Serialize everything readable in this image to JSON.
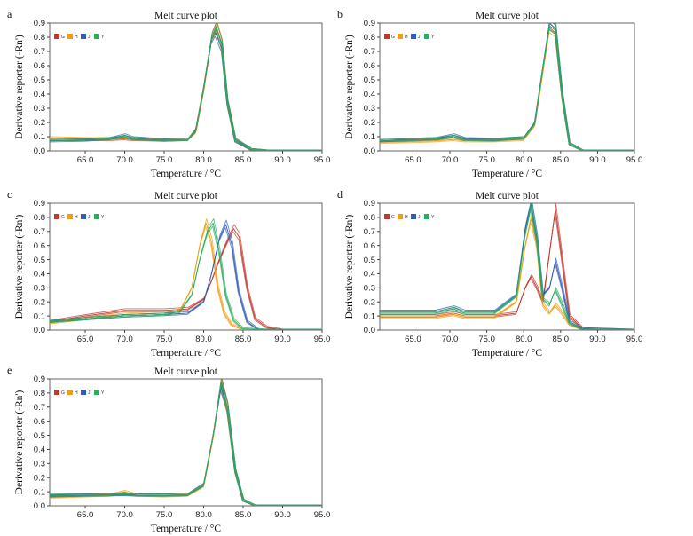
{
  "chart_data": [
    {
      "panel": "a",
      "type": "line",
      "title": "Melt curve plot",
      "xlabel": "Temperature / °C",
      "ylabel": "Derivative reporter (-Rn')",
      "xlim": [
        60.5,
        95.0
      ],
      "ylim": [
        0.0,
        0.9
      ],
      "xticks": [
        "65.0",
        "70.0",
        "75.0",
        "80.0",
        "85.0",
        "90.0",
        "95.0"
      ],
      "yticks": [
        "0.0",
        "0.1",
        "0.2",
        "0.3",
        "0.4",
        "0.5",
        "0.6",
        "0.7",
        "0.8",
        "0.9"
      ],
      "legend": [
        "G",
        "H",
        "J",
        "Y"
      ],
      "series": [
        {
          "name": "G",
          "color": "#c0392b",
          "x": [
            60.5,
            65,
            68,
            70,
            71,
            75,
            78,
            79,
            80,
            81,
            81.6,
            82.3,
            83,
            84,
            86,
            88,
            95
          ],
          "y": [
            0.08,
            0.08,
            0.08,
            0.085,
            0.08,
            0.075,
            0.08,
            0.15,
            0.45,
            0.8,
            0.88,
            0.75,
            0.35,
            0.08,
            0.01,
            0.0,
            0.0
          ]
        },
        {
          "name": "H",
          "color": "#f39c12",
          "x": [
            60.5,
            65,
            68,
            70,
            71,
            75,
            78,
            79,
            80,
            81,
            81.7,
            82.3,
            83,
            84,
            86,
            88,
            95
          ],
          "y": [
            0.09,
            0.085,
            0.085,
            0.095,
            0.085,
            0.08,
            0.08,
            0.13,
            0.42,
            0.78,
            0.86,
            0.74,
            0.33,
            0.07,
            0.01,
            0.0,
            0.0
          ]
        },
        {
          "name": "J",
          "color": "#2e5cb8",
          "x": [
            60.5,
            65,
            68,
            70,
            71,
            75,
            78,
            79,
            80,
            81,
            81.5,
            82.3,
            83,
            84,
            86,
            88,
            95
          ],
          "y": [
            0.07,
            0.075,
            0.085,
            0.11,
            0.09,
            0.075,
            0.08,
            0.14,
            0.44,
            0.78,
            0.83,
            0.72,
            0.34,
            0.07,
            0.01,
            0.0,
            0.0
          ]
        },
        {
          "name": "Y",
          "color": "#27ae60",
          "x": [
            60.5,
            65,
            68,
            70,
            71,
            75,
            78,
            79,
            80,
            81,
            81.6,
            82.3,
            83,
            84,
            86,
            88,
            95
          ],
          "y": [
            0.08,
            0.08,
            0.085,
            0.1,
            0.085,
            0.078,
            0.08,
            0.14,
            0.44,
            0.8,
            0.87,
            0.74,
            0.34,
            0.08,
            0.01,
            0.0,
            0.0
          ]
        }
      ]
    },
    {
      "panel": "b",
      "type": "line",
      "title": "Melt curve plot",
      "xlabel": "Temperature / °C",
      "ylabel": "Derivative reporter (-Rn')",
      "xlim": [
        60.5,
        95.0
      ],
      "ylim": [
        0.0,
        0.9
      ],
      "xticks": [
        "65.0",
        "70.0",
        "75.0",
        "80.0",
        "85.0",
        "90.0",
        "95.0"
      ],
      "yticks": [
        "0.0",
        "0.1",
        "0.2",
        "0.3",
        "0.4",
        "0.5",
        "0.6",
        "0.7",
        "0.8",
        "0.9"
      ],
      "legend": [
        "G",
        "H",
        "J",
        "Y"
      ],
      "series": [
        {
          "name": "G",
          "color": "#c0392b",
          "x": [
            60.5,
            65,
            68,
            70.5,
            72,
            76,
            80,
            81.5,
            82.5,
            83.5,
            84.3,
            85.2,
            86.2,
            88,
            95
          ],
          "y": [
            0.07,
            0.075,
            0.08,
            0.1,
            0.08,
            0.075,
            0.09,
            0.2,
            0.55,
            0.88,
            0.85,
            0.4,
            0.05,
            0.0,
            0.0
          ]
        },
        {
          "name": "H",
          "color": "#f39c12",
          "x": [
            60.5,
            65,
            68,
            70.5,
            72,
            76,
            80,
            81.5,
            82.5,
            83.5,
            84.3,
            85.2,
            86.2,
            88,
            95
          ],
          "y": [
            0.06,
            0.065,
            0.07,
            0.08,
            0.07,
            0.07,
            0.08,
            0.18,
            0.52,
            0.86,
            0.83,
            0.38,
            0.05,
            0.0,
            0.0
          ]
        },
        {
          "name": "J",
          "color": "#2e5cb8",
          "x": [
            60.5,
            65,
            68,
            70.5,
            72,
            76,
            80,
            81.5,
            82.5,
            83.5,
            84.3,
            85.2,
            86.2,
            88,
            95
          ],
          "y": [
            0.07,
            0.08,
            0.085,
            0.11,
            0.085,
            0.08,
            0.09,
            0.2,
            0.56,
            0.9,
            0.86,
            0.4,
            0.05,
            0.0,
            0.0
          ]
        },
        {
          "name": "Y",
          "color": "#27ae60",
          "x": [
            60.5,
            65,
            68,
            70.5,
            72,
            76,
            80,
            81.5,
            82.5,
            83.5,
            84.3,
            85.2,
            86.2,
            88,
            95
          ],
          "y": [
            0.08,
            0.08,
            0.085,
            0.1,
            0.08,
            0.078,
            0.09,
            0.19,
            0.55,
            0.88,
            0.85,
            0.39,
            0.05,
            0.0,
            0.0
          ]
        }
      ]
    },
    {
      "panel": "c",
      "type": "line",
      "title": "Melt curve plot",
      "xlabel": "Temperature / °C",
      "ylabel": "Derivative reporter (-Rn')",
      "xlim": [
        60.5,
        95.0
      ],
      "ylim": [
        0.0,
        0.9
      ],
      "xticks": [
        "65.0",
        "70.0",
        "75.0",
        "80.0",
        "85.0",
        "90.0",
        "95.0"
      ],
      "yticks": [
        "0.0",
        "0.1",
        "0.2",
        "0.3",
        "0.4",
        "0.5",
        "0.6",
        "0.7",
        "0.8",
        "0.9"
      ],
      "legend": [
        "G",
        "H",
        "J",
        "Y"
      ],
      "series": [
        {
          "name": "G",
          "color": "#c0392b",
          "x": [
            60.5,
            65,
            70,
            75,
            78,
            80,
            81,
            82,
            83,
            83.8,
            84.5,
            85.5,
            86.5,
            88,
            90,
            95
          ],
          "y": [
            0.06,
            0.1,
            0.14,
            0.14,
            0.15,
            0.22,
            0.35,
            0.5,
            0.63,
            0.72,
            0.66,
            0.3,
            0.08,
            0.02,
            0.0,
            0.0
          ]
        },
        {
          "name": "H",
          "color": "#f39c12",
          "x": [
            60.5,
            65,
            70,
            75,
            77,
            78.5,
            79.5,
            80.3,
            81,
            81.8,
            82.6,
            83.5,
            85,
            88,
            95
          ],
          "y": [
            0.05,
            0.08,
            0.11,
            0.12,
            0.14,
            0.3,
            0.6,
            0.76,
            0.62,
            0.3,
            0.12,
            0.04,
            0.0,
            0.0,
            0.0
          ]
        },
        {
          "name": "J",
          "color": "#2e5cb8",
          "x": [
            60.5,
            65,
            70,
            75,
            78,
            80,
            81,
            82,
            82.8,
            83.6,
            84.4,
            85.5,
            87,
            95
          ],
          "y": [
            0.06,
            0.08,
            0.1,
            0.11,
            0.12,
            0.2,
            0.4,
            0.65,
            0.75,
            0.6,
            0.28,
            0.06,
            0.0,
            0.0
          ]
        },
        {
          "name": "Y",
          "color": "#27ae60",
          "x": [
            60.5,
            65,
            70,
            75,
            77,
            78.5,
            79.5,
            80.5,
            81.2,
            82,
            82.8,
            83.8,
            85,
            88,
            95
          ],
          "y": [
            0.06,
            0.08,
            0.1,
            0.11,
            0.13,
            0.25,
            0.5,
            0.7,
            0.76,
            0.55,
            0.25,
            0.07,
            0.01,
            0.0,
            0.0
          ]
        }
      ]
    },
    {
      "panel": "d",
      "type": "line",
      "title": "Melt curve plot",
      "xlabel": "Temperature / °C",
      "ylabel": "Derivative reporter (-Rn')",
      "xlim": [
        60.5,
        95.0
      ],
      "ylim": [
        0.0,
        0.9
      ],
      "xticks": [
        "65.0",
        "70.0",
        "75.0",
        "80.0",
        "85.0",
        "90.0",
        "95.0"
      ],
      "yticks": [
        "0.0",
        "0.1",
        "0.2",
        "0.3",
        "0.4",
        "0.5",
        "0.6",
        "0.7",
        "0.8",
        "0.9"
      ],
      "legend": [
        "G",
        "H",
        "J",
        "Y"
      ],
      "series": [
        {
          "name": "G",
          "color": "#c0392b",
          "x": [
            60.5,
            65,
            68,
            70.5,
            72,
            76,
            79,
            80.2,
            81,
            81.8,
            82.6,
            83.5,
            84.3,
            85.2,
            86.2,
            88,
            95
          ],
          "y": [
            0.1,
            0.1,
            0.1,
            0.12,
            0.1,
            0.1,
            0.12,
            0.3,
            0.38,
            0.3,
            0.2,
            0.55,
            0.86,
            0.5,
            0.1,
            0.01,
            0.0
          ]
        },
        {
          "name": "H",
          "color": "#f39c12",
          "x": [
            60.5,
            65,
            68,
            70.5,
            72,
            76,
            79,
            80.2,
            81,
            81.8,
            82.6,
            83.5,
            84.3,
            85.2,
            86.2,
            88,
            95
          ],
          "y": [
            0.09,
            0.09,
            0.09,
            0.11,
            0.09,
            0.09,
            0.2,
            0.6,
            0.79,
            0.6,
            0.18,
            0.12,
            0.18,
            0.12,
            0.04,
            0.0,
            0.0
          ]
        },
        {
          "name": "J",
          "color": "#2e5cb8",
          "x": [
            60.5,
            65,
            68,
            70.5,
            72,
            76,
            79,
            80.2,
            81,
            81.8,
            82.6,
            83.5,
            84.3,
            85.2,
            86.2,
            88,
            95
          ],
          "y": [
            0.13,
            0.13,
            0.13,
            0.16,
            0.13,
            0.13,
            0.25,
            0.72,
            0.9,
            0.65,
            0.25,
            0.3,
            0.49,
            0.3,
            0.06,
            0.01,
            0.0
          ]
        },
        {
          "name": "Y",
          "color": "#27ae60",
          "x": [
            60.5,
            65,
            68,
            70.5,
            72,
            76,
            79,
            80.2,
            81,
            81.8,
            82.6,
            83.5,
            84.3,
            85.2,
            86.2,
            88,
            95
          ],
          "y": [
            0.12,
            0.12,
            0.12,
            0.15,
            0.12,
            0.12,
            0.24,
            0.68,
            0.88,
            0.63,
            0.22,
            0.18,
            0.29,
            0.18,
            0.05,
            0.0,
            0.0
          ]
        }
      ]
    },
    {
      "panel": "e",
      "type": "line",
      "title": "Melt curve plot",
      "xlabel": "Temperature / °C",
      "ylabel": "Derivative reporter (-Rn')",
      "xlim": [
        60.5,
        95.0
      ],
      "ylim": [
        0.0,
        0.9
      ],
      "xticks": [
        "65.0",
        "70.0",
        "75.0",
        "80.0",
        "85.0",
        "90.0",
        "95.0"
      ],
      "yticks": [
        "0.0",
        "0.1",
        "0.2",
        "0.3",
        "0.4",
        "0.5",
        "0.6",
        "0.7",
        "0.8",
        "0.9"
      ],
      "legend": [
        "G",
        "H",
        "J",
        "Y"
      ],
      "series": [
        {
          "name": "G",
          "color": "#c0392b",
          "x": [
            60.5,
            65,
            68,
            70,
            71.5,
            75,
            78,
            80,
            81.2,
            82.2,
            83,
            84,
            85,
            86.5,
            95
          ],
          "y": [
            0.07,
            0.075,
            0.075,
            0.085,
            0.075,
            0.075,
            0.08,
            0.15,
            0.5,
            0.88,
            0.7,
            0.25,
            0.04,
            0.0,
            0.0
          ]
        },
        {
          "name": "H",
          "color": "#f39c12",
          "x": [
            60.5,
            65,
            68,
            70,
            71.5,
            75,
            78,
            80,
            81.2,
            82.2,
            83,
            84,
            85,
            86.5,
            95
          ],
          "y": [
            0.06,
            0.07,
            0.075,
            0.1,
            0.075,
            0.07,
            0.075,
            0.14,
            0.48,
            0.86,
            0.68,
            0.24,
            0.04,
            0.0,
            0.0
          ]
        },
        {
          "name": "J",
          "color": "#2e5cb8",
          "x": [
            60.5,
            65,
            68,
            70,
            71.5,
            75,
            78,
            80,
            81.2,
            82.2,
            83,
            84,
            85,
            86.5,
            95
          ],
          "y": [
            0.07,
            0.075,
            0.078,
            0.08,
            0.076,
            0.075,
            0.08,
            0.15,
            0.5,
            0.84,
            0.7,
            0.25,
            0.04,
            0.0,
            0.0
          ]
        },
        {
          "name": "Y",
          "color": "#27ae60",
          "x": [
            60.5,
            65,
            68,
            70,
            71.5,
            75,
            78,
            80,
            81.2,
            82.2,
            83,
            84,
            85,
            86.5,
            95
          ],
          "y": [
            0.075,
            0.078,
            0.08,
            0.085,
            0.078,
            0.076,
            0.08,
            0.15,
            0.5,
            0.87,
            0.7,
            0.25,
            0.04,
            0.0,
            0.0
          ]
        }
      ]
    }
  ]
}
